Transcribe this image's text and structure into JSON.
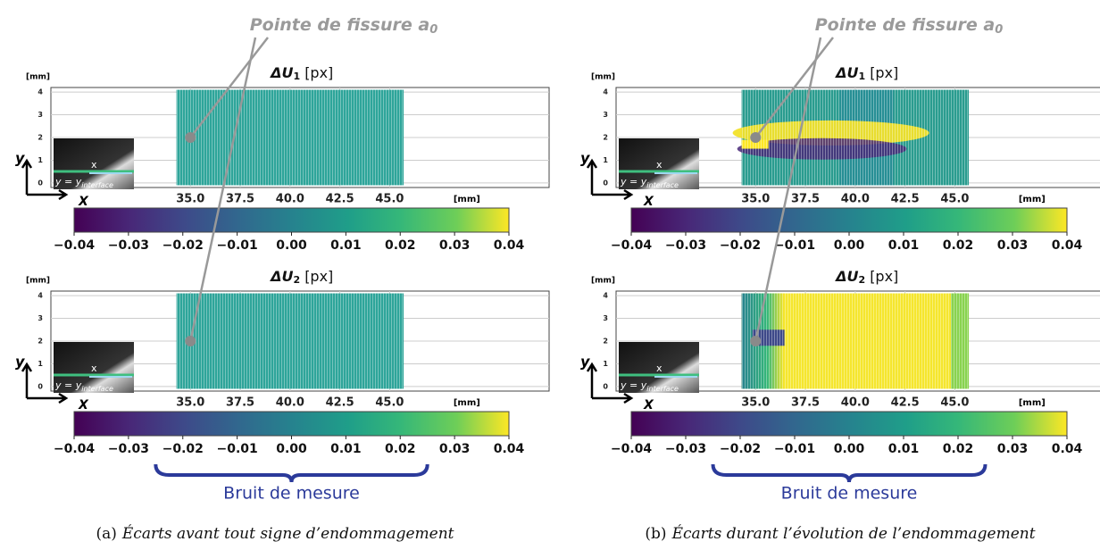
{
  "panels": [
    {
      "annotation": {
        "text": "Pointe de fissure a",
        "sub": "0"
      },
      "plots": [
        {
          "title": "ΔU",
          "title_sub": "1",
          "title_unit": "[px]",
          "y_unit": "[mm]",
          "x_unit": "[mm]",
          "axis_y": "y",
          "axis_x": "X",
          "inset_x": "x",
          "inset_eq": "y = y",
          "inset_sub": "interface",
          "xlim": [
            28,
            53
          ],
          "xticks": [
            {
              "value": 35,
              "label": "35.0"
            },
            {
              "value": 37.5,
              "label": "37.5"
            },
            {
              "value": 40,
              "label": "40.0"
            },
            {
              "value": 42.5,
              "label": "42.5"
            },
            {
              "value": 45,
              "label": "45.0"
            }
          ],
          "ylim": [
            -0.2,
            4.2
          ],
          "yticks": [
            0,
            1,
            2,
            3,
            4
          ],
          "clim": [
            -0.04,
            0.04
          ],
          "cticks": [
            {
              "value": -0.04,
              "label": "−0.04"
            },
            {
              "value": -0.03,
              "label": "−0.03"
            },
            {
              "value": -0.02,
              "label": "−0.02"
            },
            {
              "value": -0.01,
              "label": "−0.01"
            },
            {
              "value": 0,
              "label": "0.00"
            },
            0.01,
            0.02,
            0.03,
            0.04
          ]
        },
        {
          "title": "ΔU",
          "title_sub": "2",
          "title_unit": "[px]",
          "y_unit": "[mm]",
          "x_unit": "[mm]",
          "axis_y": "y",
          "axis_x": "X",
          "inset_x": "x",
          "inset_eq": "y = y",
          "inset_sub": "interface",
          "xlim": [
            28,
            53
          ],
          "xticks": [
            {
              "value": 35,
              "label": "35.0"
            },
            {
              "value": 37.5,
              "label": "37.5"
            },
            {
              "value": 40,
              "label": "40.0"
            },
            {
              "value": 42.5,
              "label": "42.5"
            },
            {
              "value": 45,
              "label": "45.0"
            }
          ],
          "ylim": [
            -0.2,
            4.2
          ],
          "yticks": [
            0,
            1,
            2,
            3,
            4
          ],
          "clim": [
            -0.04,
            0.04
          ],
          "cticks": [
            {
              "value": -0.04,
              "label": "−0.04"
            },
            {
              "value": -0.03,
              "label": "−0.03"
            },
            {
              "value": -0.02,
              "label": "−0.02"
            },
            {
              "value": -0.01,
              "label": "−0.01"
            },
            {
              "value": 0,
              "label": "0.00"
            },
            0.01,
            0.02,
            0.03,
            0.04
          ]
        }
      ],
      "noise_label": "Bruit de mesure",
      "caption": {
        "label": "(a)",
        "text": "Écarts avant tout signe d’endommagement"
      }
    },
    {
      "annotation": {
        "text": "Pointe de fissure a",
        "sub": "0"
      },
      "plots": [
        {
          "title": "ΔU",
          "title_sub": "1",
          "title_unit": "[px]",
          "y_unit": "[mm]",
          "x_unit": "[mm]",
          "axis_y": "y",
          "axis_x": "X",
          "inset_x": "x",
          "inset_eq": "y = y",
          "inset_sub": "interface",
          "xlim": [
            28,
            53
          ],
          "xticks": [
            {
              "value": 35,
              "label": "35.0"
            },
            {
              "value": 37.5,
              "label": "37.5"
            },
            {
              "value": 40,
              "label": "40.0"
            },
            {
              "value": 42.5,
              "label": "42.5"
            },
            {
              "value": 45,
              "label": "45.0"
            }
          ],
          "ylim": [
            -0.2,
            4.2
          ],
          "yticks": [
            0,
            1,
            2,
            3,
            4
          ],
          "clim": [
            -0.04,
            0.04
          ],
          "cticks": [
            {
              "value": -0.04,
              "label": "−0.04"
            },
            {
              "value": -0.03,
              "label": "−0.03"
            },
            {
              "value": -0.02,
              "label": "−0.02"
            },
            {
              "value": -0.01,
              "label": "−0.01"
            },
            {
              "value": 0,
              "label": "0.00"
            },
            0.01,
            0.02,
            0.03,
            0.04
          ]
        },
        {
          "title": "ΔU",
          "title_sub": "2",
          "title_unit": "[px]",
          "y_unit": "[mm]",
          "x_unit": "[mm]",
          "axis_y": "y",
          "axis_x": "X",
          "inset_x": "x",
          "inset_eq": "y = y",
          "inset_sub": "interface",
          "xlim": [
            28,
            53
          ],
          "xticks": [
            {
              "value": 35,
              "label": "35.0"
            },
            {
              "value": 37.5,
              "label": "37.5"
            },
            {
              "value": 40,
              "label": "40.0"
            },
            {
              "value": 42.5,
              "label": "42.5"
            },
            {
              "value": 45,
              "label": "45.0"
            }
          ],
          "ylim": [
            -0.2,
            4.2
          ],
          "yticks": [
            0,
            1,
            2,
            3,
            4
          ],
          "clim": [
            -0.04,
            0.04
          ],
          "cticks": [
            {
              "value": -0.04,
              "label": "−0.04"
            },
            {
              "value": -0.03,
              "label": "−0.03"
            },
            {
              "value": -0.02,
              "label": "−0.02"
            },
            {
              "value": -0.01,
              "label": "−0.01"
            },
            {
              "value": 0,
              "label": "0.00"
            },
            0.01,
            0.02,
            0.03,
            0.04
          ]
        }
      ],
      "noise_label": "Bruit de mesure",
      "caption": {
        "label": "(b)",
        "text": "Écarts durant l’évolution de l’endommagement"
      }
    }
  ]
}
